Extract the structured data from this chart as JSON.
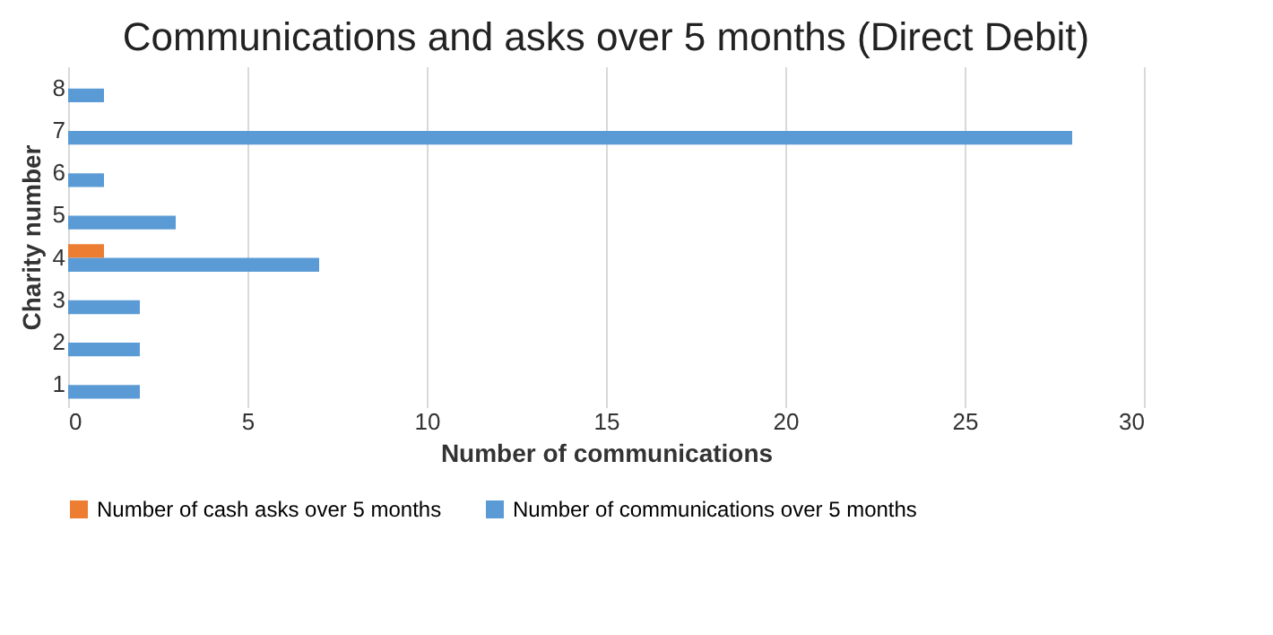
{
  "chart_data": {
    "type": "bar",
    "orientation": "horizontal",
    "title": "Communications and asks over 5 months (Direct Debit)",
    "xlabel": "Number of communications",
    "ylabel": "Charity number",
    "categories": [
      "8",
      "7",
      "6",
      "5",
      "4",
      "3",
      "2",
      "1"
    ],
    "series": [
      {
        "name": "Number of cash asks  over 5 months",
        "color": "#ed7d31",
        "values": [
          0,
          0,
          0,
          0,
          1,
          0,
          0,
          0
        ]
      },
      {
        "name": "Number of communications  over 5 months",
        "color": "#5b9bd5",
        "values": [
          1,
          28,
          1,
          3,
          7,
          2,
          2,
          2
        ]
      }
    ],
    "xlim": [
      0,
      30
    ],
    "xticks": [
      0,
      5,
      10,
      15,
      20,
      25,
      30
    ],
    "grid": "x",
    "legend": "bottom"
  }
}
